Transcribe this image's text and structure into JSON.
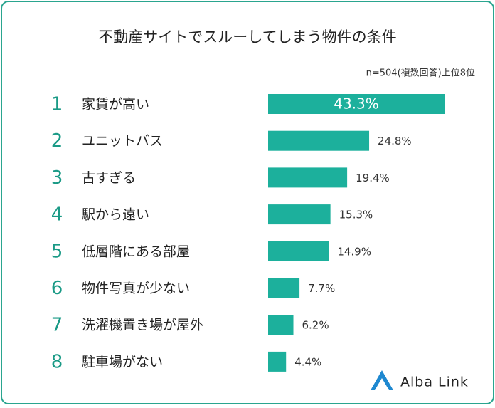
{
  "chart_data": {
    "type": "bar",
    "title": "不動産サイトでスルーしてしまう物件の条件",
    "subtitle": "n=504(複数回答)上位8位",
    "ranks": [
      1,
      2,
      3,
      4,
      5,
      6,
      7,
      8
    ],
    "categories": [
      "家賃が高い",
      "ユニットバス",
      "古すぎる",
      "駅から遠い",
      "低層階にある部屋",
      "物件写真が少ない",
      "洗濯機置き場が屋外",
      "駐車場がない"
    ],
    "values": [
      43.3,
      24.8,
      19.4,
      15.3,
      14.9,
      7.7,
      6.2,
      4.4
    ],
    "value_labels": [
      "43.3%",
      "24.8%",
      "19.4%",
      "15.3%",
      "14.9%",
      "7.7%",
      "6.2%",
      "4.4%"
    ],
    "color": "#1cb09c",
    "rank_color": "#1a9a86",
    "brand": "Alba Link"
  }
}
